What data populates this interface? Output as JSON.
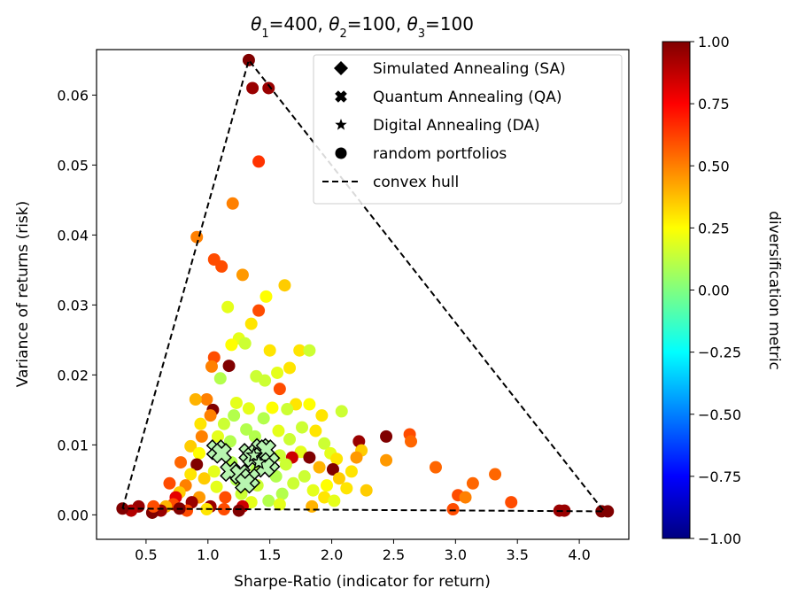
{
  "chart_data": {
    "type": "scatter",
    "title_parts": [
      {
        "t": "θ",
        "sub": "1",
        "v": "=400, "
      },
      {
        "t": "θ",
        "sub": "2",
        "v": "=100, "
      },
      {
        "t": "θ",
        "sub": "3",
        "v": "=100"
      }
    ],
    "xlabel": "Sharpe-Ratio (indicator for return)",
    "ylabel": "Variance of returns (risk)",
    "xlim": [
      0.1,
      4.4
    ],
    "ylim": [
      -0.0035,
      0.0665
    ],
    "xticks": [
      0.5,
      1.0,
      1.5,
      2.0,
      2.5,
      3.0,
      3.5,
      4.0
    ],
    "xtick_labels": [
      "0.5",
      "1.0",
      "1.5",
      "2.0",
      "2.5",
      "3.0",
      "3.5",
      "4.0"
    ],
    "yticks": [
      0.0,
      0.01,
      0.02,
      0.03,
      0.04,
      0.05,
      0.06
    ],
    "ytick_labels": [
      "0.00",
      "0.01",
      "0.02",
      "0.03",
      "0.04",
      "0.05",
      "0.06"
    ],
    "colorbar": {
      "label": "diversification metric",
      "range": [
        -1.0,
        1.0
      ],
      "ticks": [
        1.0,
        0.75,
        0.5,
        0.25,
        0.0,
        -0.25,
        -0.5,
        -0.75,
        -1.0
      ],
      "tick_labels": [
        "1.00",
        "0.75",
        "0.50",
        "0.25",
        "0.00",
        "−0.25",
        "−0.50",
        "−0.75",
        "−1.00"
      ],
      "colormap": "jet"
    },
    "legend": {
      "placement": "top-right",
      "entries": [
        {
          "marker": "diamond",
          "label": "Simulated Annealing (SA)"
        },
        {
          "marker": "x",
          "label": "Quantum Annealing (QA)"
        },
        {
          "marker": "star",
          "label": "Digital Annealing (DA)"
        },
        {
          "marker": "circle",
          "label": "random portfolios"
        },
        {
          "marker": "dashed-line",
          "label": "convex hull"
        }
      ]
    },
    "convex_hull": [
      [
        0.31,
        0.0009
      ],
      [
        1.33,
        0.065
      ],
      [
        4.2,
        0.0005
      ],
      [
        0.31,
        0.0009
      ]
    ],
    "random_portfolios": [
      {
        "x": 1.33,
        "y": 0.065,
        "c": 1.0
      },
      {
        "x": 1.36,
        "y": 0.061,
        "c": 0.95
      },
      {
        "x": 1.49,
        "y": 0.061,
        "c": 0.95
      },
      {
        "x": 1.41,
        "y": 0.0505,
        "c": 0.65
      },
      {
        "x": 1.2,
        "y": 0.0445,
        "c": 0.5
      },
      {
        "x": 0.91,
        "y": 0.0397,
        "c": 0.5
      },
      {
        "x": 1.05,
        "y": 0.0365,
        "c": 0.6
      },
      {
        "x": 1.11,
        "y": 0.0355,
        "c": 0.6
      },
      {
        "x": 1.28,
        "y": 0.0343,
        "c": 0.45
      },
      {
        "x": 1.62,
        "y": 0.0328,
        "c": 0.35
      },
      {
        "x": 1.47,
        "y": 0.0312,
        "c": 0.25
      },
      {
        "x": 1.41,
        "y": 0.0292,
        "c": 0.6
      },
      {
        "x": 1.16,
        "y": 0.0297,
        "c": 0.2
      },
      {
        "x": 1.35,
        "y": 0.0273,
        "c": 0.3
      },
      {
        "x": 1.25,
        "y": 0.0252,
        "c": 0.2
      },
      {
        "x": 1.19,
        "y": 0.0243,
        "c": 0.25
      },
      {
        "x": 1.3,
        "y": 0.0245,
        "c": 0.15
      },
      {
        "x": 1.5,
        "y": 0.0235,
        "c": 0.3
      },
      {
        "x": 1.74,
        "y": 0.0235,
        "c": 0.3
      },
      {
        "x": 1.82,
        "y": 0.0235,
        "c": 0.15
      },
      {
        "x": 1.05,
        "y": 0.0225,
        "c": 0.6
      },
      {
        "x": 1.17,
        "y": 0.0213,
        "c": 1.0
      },
      {
        "x": 1.03,
        "y": 0.0212,
        "c": 0.5
      },
      {
        "x": 1.66,
        "y": 0.021,
        "c": 0.3
      },
      {
        "x": 1.56,
        "y": 0.0203,
        "c": 0.2
      },
      {
        "x": 1.39,
        "y": 0.0198,
        "c": 0.15
      },
      {
        "x": 1.1,
        "y": 0.0195,
        "c": 0.1
      },
      {
        "x": 1.46,
        "y": 0.0192,
        "c": 0.15
      },
      {
        "x": 1.58,
        "y": 0.018,
        "c": 0.6
      },
      {
        "x": 0.99,
        "y": 0.0165,
        "c": 0.5
      },
      {
        "x": 1.23,
        "y": 0.016,
        "c": 0.2
      },
      {
        "x": 1.71,
        "y": 0.0158,
        "c": 0.3
      },
      {
        "x": 1.82,
        "y": 0.0158,
        "c": 0.25
      },
      {
        "x": 0.9,
        "y": 0.0165,
        "c": 0.4
      },
      {
        "x": 1.04,
        "y": 0.015,
        "c": 1.0
      },
      {
        "x": 1.33,
        "y": 0.0152,
        "c": 0.2
      },
      {
        "x": 1.52,
        "y": 0.0153,
        "c": 0.25
      },
      {
        "x": 1.64,
        "y": 0.0151,
        "c": 0.15
      },
      {
        "x": 2.08,
        "y": 0.0148,
        "c": 0.15
      },
      {
        "x": 1.02,
        "y": 0.0142,
        "c": 0.5
      },
      {
        "x": 1.21,
        "y": 0.0142,
        "c": 0.1
      },
      {
        "x": 1.92,
        "y": 0.0142,
        "c": 0.3
      },
      {
        "x": 1.45,
        "y": 0.0138,
        "c": 0.1
      },
      {
        "x": 0.94,
        "y": 0.013,
        "c": 0.3
      },
      {
        "x": 1.13,
        "y": 0.013,
        "c": 0.15
      },
      {
        "x": 1.76,
        "y": 0.0125,
        "c": 0.15
      },
      {
        "x": 1.31,
        "y": 0.0122,
        "c": 0.1
      },
      {
        "x": 1.57,
        "y": 0.012,
        "c": 0.2
      },
      {
        "x": 1.87,
        "y": 0.012,
        "c": 0.3
      },
      {
        "x": 0.95,
        "y": 0.0112,
        "c": 0.5
      },
      {
        "x": 1.08,
        "y": 0.0112,
        "c": 0.2
      },
      {
        "x": 1.38,
        "y": 0.0112,
        "c": 0.1
      },
      {
        "x": 2.44,
        "y": 0.0112,
        "c": 1.0
      },
      {
        "x": 2.63,
        "y": 0.0115,
        "c": 0.6
      },
      {
        "x": 2.64,
        "y": 0.0105,
        "c": 0.55
      },
      {
        "x": 2.22,
        "y": 0.0105,
        "c": 0.95
      },
      {
        "x": 1.66,
        "y": 0.0108,
        "c": 0.15
      },
      {
        "x": 1.18,
        "y": 0.0105,
        "c": 0.1
      },
      {
        "x": 1.94,
        "y": 0.0102,
        "c": 0.15
      },
      {
        "x": 0.86,
        "y": 0.0098,
        "c": 0.35
      },
      {
        "x": 1.48,
        "y": 0.0098,
        "c": 0.1
      },
      {
        "x": 2.24,
        "y": 0.0092,
        "c": 0.35
      },
      {
        "x": 1.99,
        "y": 0.0088,
        "c": 0.2
      },
      {
        "x": 0.93,
        "y": 0.0088,
        "c": 0.25
      },
      {
        "x": 1.75,
        "y": 0.009,
        "c": 0.2
      },
      {
        "x": 1.58,
        "y": 0.0085,
        "c": 0.15
      },
      {
        "x": 2.2,
        "y": 0.0082,
        "c": 0.45
      },
      {
        "x": 2.04,
        "y": 0.008,
        "c": 0.3
      },
      {
        "x": 1.68,
        "y": 0.0082,
        "c": 0.85
      },
      {
        "x": 1.82,
        "y": 0.0082,
        "c": 1.0
      },
      {
        "x": 2.44,
        "y": 0.0078,
        "c": 0.45
      },
      {
        "x": 0.78,
        "y": 0.0075,
        "c": 0.55
      },
      {
        "x": 0.91,
        "y": 0.0072,
        "c": 1.0
      },
      {
        "x": 1.19,
        "y": 0.0075,
        "c": 0.1
      },
      {
        "x": 1.63,
        "y": 0.0072,
        "c": 0.15
      },
      {
        "x": 1.9,
        "y": 0.0068,
        "c": 0.4
      },
      {
        "x": 2.84,
        "y": 0.0068,
        "c": 0.55
      },
      {
        "x": 2.01,
        "y": 0.0065,
        "c": 1.0
      },
      {
        "x": 1.39,
        "y": 0.0065,
        "c": 0.1
      },
      {
        "x": 2.16,
        "y": 0.0062,
        "c": 0.3
      },
      {
        "x": 1.05,
        "y": 0.0062,
        "c": 0.2
      },
      {
        "x": 3.32,
        "y": 0.0058,
        "c": 0.55
      },
      {
        "x": 0.86,
        "y": 0.0058,
        "c": 0.3
      },
      {
        "x": 1.78,
        "y": 0.0055,
        "c": 0.15
      },
      {
        "x": 1.55,
        "y": 0.0055,
        "c": 0.1
      },
      {
        "x": 0.97,
        "y": 0.0052,
        "c": 0.35
      },
      {
        "x": 2.06,
        "y": 0.0052,
        "c": 0.35
      },
      {
        "x": 1.23,
        "y": 0.005,
        "c": 0.1
      },
      {
        "x": 3.14,
        "y": 0.0045,
        "c": 0.55
      },
      {
        "x": 1.69,
        "y": 0.0045,
        "c": 0.15
      },
      {
        "x": 0.69,
        "y": 0.0045,
        "c": 0.6
      },
      {
        "x": 0.82,
        "y": 0.0042,
        "c": 0.5
      },
      {
        "x": 1.96,
        "y": 0.0042,
        "c": 0.25
      },
      {
        "x": 1.4,
        "y": 0.0042,
        "c": 0.15
      },
      {
        "x": 1.07,
        "y": 0.004,
        "c": 0.2
      },
      {
        "x": 2.12,
        "y": 0.0038,
        "c": 0.3
      },
      {
        "x": 2.28,
        "y": 0.0035,
        "c": 0.35
      },
      {
        "x": 1.85,
        "y": 0.0035,
        "c": 0.2
      },
      {
        "x": 0.77,
        "y": 0.0032,
        "c": 0.35
      },
      {
        "x": 1.27,
        "y": 0.003,
        "c": 0.15
      },
      {
        "x": 1.6,
        "y": 0.003,
        "c": 0.1
      },
      {
        "x": 3.02,
        "y": 0.0028,
        "c": 0.6
      },
      {
        "x": 3.08,
        "y": 0.0025,
        "c": 0.5
      },
      {
        "x": 0.74,
        "y": 0.0025,
        "c": 0.8
      },
      {
        "x": 0.93,
        "y": 0.0025,
        "c": 0.45
      },
      {
        "x": 1.14,
        "y": 0.0025,
        "c": 0.6
      },
      {
        "x": 1.94,
        "y": 0.0025,
        "c": 0.3
      },
      {
        "x": 2.02,
        "y": 0.002,
        "c": 0.2
      },
      {
        "x": 1.49,
        "y": 0.002,
        "c": 0.1
      },
      {
        "x": 0.87,
        "y": 0.0018,
        "c": 0.95
      },
      {
        "x": 1.35,
        "y": 0.0018,
        "c": 0.2
      },
      {
        "x": 0.72,
        "y": 0.0015,
        "c": 0.6
      },
      {
        "x": 0.66,
        "y": 0.0012,
        "c": 0.4
      },
      {
        "x": 1.02,
        "y": 0.0012,
        "c": 0.95
      },
      {
        "x": 1.28,
        "y": 0.0012,
        "c": 0.85
      },
      {
        "x": 1.84,
        "y": 0.0012,
        "c": 0.4
      },
      {
        "x": 3.45,
        "y": 0.0018,
        "c": 0.6
      },
      {
        "x": 1.58,
        "y": 0.0015,
        "c": 0.2
      },
      {
        "x": 1.13,
        "y": 0.0008,
        "c": 0.6
      },
      {
        "x": 1.25,
        "y": 0.0006,
        "c": 1.0
      },
      {
        "x": 0.99,
        "y": 0.0008,
        "c": 0.3
      },
      {
        "x": 0.83,
        "y": 0.0006,
        "c": 0.6
      },
      {
        "x": 0.77,
        "y": 0.0009,
        "c": 1.0
      },
      {
        "x": 0.62,
        "y": 0.0006,
        "c": 0.95
      },
      {
        "x": 0.55,
        "y": 0.0003,
        "c": 1.0
      },
      {
        "x": 0.56,
        "y": 0.0012,
        "c": 0.6
      },
      {
        "x": 0.44,
        "y": 0.0012,
        "c": 0.95
      },
      {
        "x": 0.38,
        "y": 0.0006,
        "c": 0.9
      },
      {
        "x": 0.31,
        "y": 0.0009,
        "c": 1.0
      },
      {
        "x": 2.98,
        "y": 0.0008,
        "c": 0.6
      },
      {
        "x": 3.84,
        "y": 0.0006,
        "c": 0.95
      },
      {
        "x": 3.88,
        "y": 0.0006,
        "c": 0.95
      },
      {
        "x": 4.18,
        "y": 0.0005,
        "c": 1.0
      },
      {
        "x": 4.23,
        "y": 0.0005,
        "c": 1.0
      }
    ],
    "quantum_annealing": [
      {
        "x": 1.07,
        "y": 0.0093
      },
      {
        "x": 1.11,
        "y": 0.0088
      },
      {
        "x": 1.33,
        "y": 0.0088
      },
      {
        "x": 1.43,
        "y": 0.0095
      },
      {
        "x": 1.47,
        "y": 0.0093
      },
      {
        "x": 1.36,
        "y": 0.0082
      },
      {
        "x": 1.5,
        "y": 0.0075
      },
      {
        "x": 1.46,
        "y": 0.0068
      },
      {
        "x": 1.18,
        "y": 0.0062
      },
      {
        "x": 1.26,
        "y": 0.0058
      },
      {
        "x": 1.34,
        "y": 0.0052
      },
      {
        "x": 1.3,
        "y": 0.0045
      }
    ],
    "digital_annealing": [
      {
        "x": 1.37,
        "y": 0.0085
      },
      {
        "x": 1.41,
        "y": 0.0075
      }
    ]
  }
}
